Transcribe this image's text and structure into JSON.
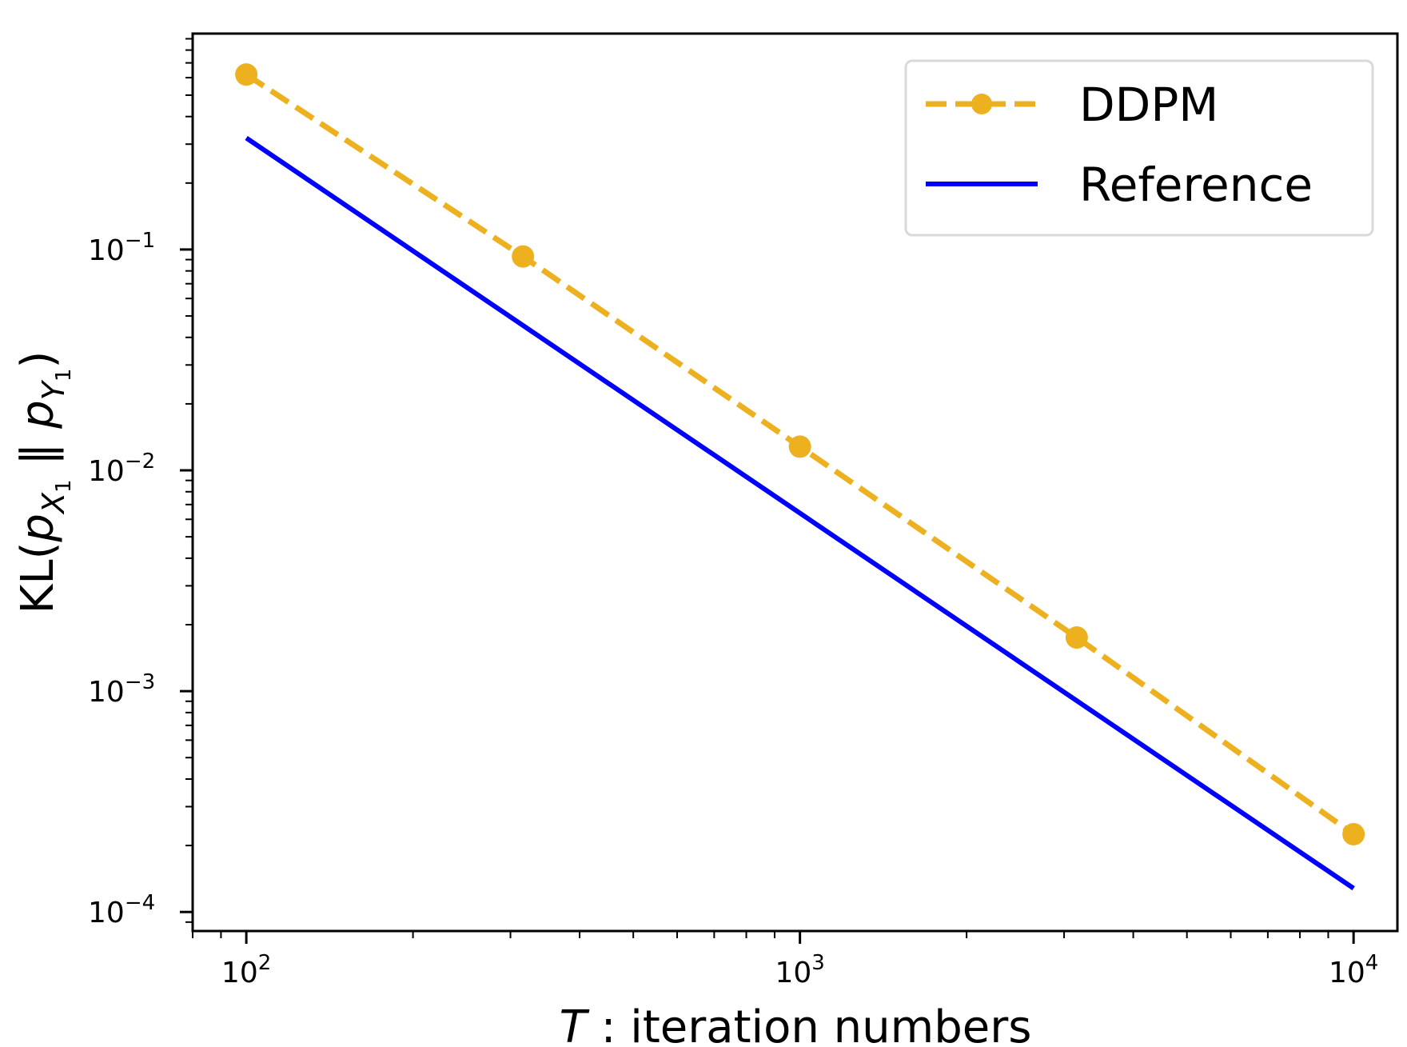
{
  "chart_data": {
    "type": "line",
    "xscale": "log",
    "yscale": "log",
    "xlim": [
      80,
      12000
    ],
    "ylim": [
      8.2e-05,
      0.95
    ],
    "xlabel": "T : iteration numbers",
    "xlabel_italic": "T",
    "xlabel_rest": " : iteration numbers",
    "ylabel": "KL(p_{X_1} ‖ p_{Y_1})",
    "ylabel_parts": {
      "prefix": "KL(",
      "p1": "p",
      "sub1": "X",
      "subsub1": "1",
      "sep": " ‖ ",
      "p2": "p",
      "sub2": "Y",
      "subsub2": "1",
      "suffix": ")"
    },
    "x_ticks": [
      {
        "value": 100,
        "base": "10",
        "exp": "2"
      },
      {
        "value": 1000,
        "base": "10",
        "exp": "3"
      },
      {
        "value": 10000,
        "base": "10",
        "exp": "4"
      }
    ],
    "y_ticks": [
      {
        "value": 0.1,
        "base": "10",
        "exp": "−1"
      },
      {
        "value": 0.01,
        "base": "10",
        "exp": "−2"
      },
      {
        "value": 0.001,
        "base": "10",
        "exp": "−3"
      },
      {
        "value": 0.0001,
        "base": "10",
        "exp": "−4"
      }
    ],
    "legend_position": "top-right",
    "series": [
      {
        "name": "DDPM",
        "color": "#EDB120",
        "style": "dashed",
        "marker": "circle",
        "x": [
          100,
          316,
          1000,
          3162,
          10000
        ],
        "y": [
          0.62,
          0.093,
          0.0128,
          0.00175,
          0.000225
        ]
      },
      {
        "name": "Reference",
        "color": "#0000FF",
        "style": "solid",
        "marker": "none",
        "x": [
          100,
          10000
        ],
        "y": [
          0.32,
          0.000128
        ]
      }
    ]
  }
}
